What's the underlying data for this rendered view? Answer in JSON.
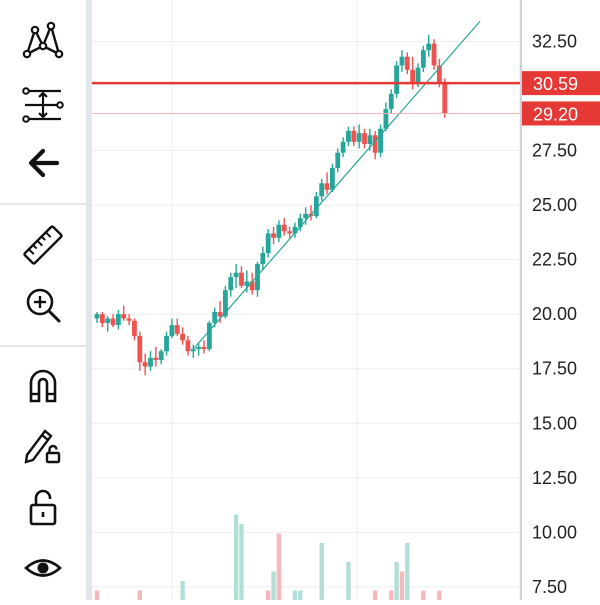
{
  "toolbar": {
    "tools": [
      {
        "name": "pattern-tool",
        "icon": "xabcd-pattern-icon"
      },
      {
        "name": "fib-retracement-tool",
        "icon": "fib-levels-icon"
      },
      {
        "name": "back-tool",
        "icon": "arrow-left-icon"
      },
      {
        "name": "measure-tool",
        "icon": "ruler-icon"
      },
      {
        "name": "zoom-in-tool",
        "icon": "zoom-in-icon"
      },
      {
        "name": "magnet-tool",
        "icon": "magnet-icon"
      },
      {
        "name": "lock-drawings-tool",
        "icon": "pencil-lock-icon"
      },
      {
        "name": "lock-all-tool",
        "icon": "unlock-icon"
      },
      {
        "name": "visibility-tool",
        "icon": "eye-icon"
      }
    ]
  },
  "colors": {
    "up": "#26a69a",
    "down": "#ef5350",
    "up_volume": "#b2dfd5",
    "down_volume": "#f5b8bc",
    "price_line": "#e53935",
    "trend_line": "#26a69a",
    "grid": "#eceef2"
  },
  "price_axis": {
    "ticks": [
      "32.50",
      "27.50",
      "25.00",
      "22.50",
      "20.00",
      "17.50",
      "15.00",
      "12.50",
      "10.00",
      "7.50"
    ]
  },
  "price_tags": {
    "current": {
      "label": "30.59",
      "value": 30.59
    },
    "last": {
      "label": "29.20",
      "value": 29.2
    }
  },
  "chart_data": {
    "type": "candlestick",
    "y_range": [
      6.9,
      34.4
    ],
    "trend_line": {
      "start": {
        "bar": 18,
        "price": 18.4
      },
      "end": {
        "bar": 66,
        "price": 32.6
      }
    },
    "candles": [
      [
        19.8,
        20.1,
        19.6,
        20.0
      ],
      [
        20.0,
        20.1,
        19.4,
        19.6
      ],
      [
        19.6,
        19.9,
        19.2,
        19.8
      ],
      [
        19.8,
        20.0,
        19.4,
        19.5
      ],
      [
        19.5,
        20.2,
        19.3,
        20.0
      ],
      [
        20.0,
        20.4,
        19.7,
        19.8
      ],
      [
        19.8,
        20.0,
        19.5,
        19.7
      ],
      [
        19.7,
        19.8,
        18.8,
        19.0
      ],
      [
        19.0,
        19.2,
        17.4,
        17.8
      ],
      [
        17.8,
        18.2,
        17.2,
        17.6
      ],
      [
        17.6,
        18.3,
        17.4,
        18.0
      ],
      [
        18.0,
        18.5,
        17.6,
        17.9
      ],
      [
        17.9,
        18.4,
        17.7,
        18.3
      ],
      [
        18.3,
        19.2,
        18.1,
        19.0
      ],
      [
        19.0,
        19.8,
        18.9,
        19.5
      ],
      [
        19.5,
        19.8,
        19.0,
        19.1
      ],
      [
        19.1,
        19.4,
        18.6,
        18.8
      ],
      [
        18.8,
        19.0,
        18.1,
        18.3
      ],
      [
        18.3,
        18.6,
        18.0,
        18.4
      ],
      [
        18.4,
        18.7,
        18.1,
        18.5
      ],
      [
        18.5,
        18.8,
        18.2,
        18.4
      ],
      [
        18.4,
        19.7,
        18.3,
        19.6
      ],
      [
        19.6,
        20.3,
        19.4,
        20.1
      ],
      [
        20.1,
        20.6,
        19.6,
        19.9
      ],
      [
        19.9,
        21.3,
        19.8,
        21.1
      ],
      [
        21.1,
        21.9,
        20.8,
        21.7
      ],
      [
        21.7,
        22.3,
        21.2,
        21.9
      ],
      [
        21.9,
        22.2,
        21.2,
        21.3
      ],
      [
        21.3,
        22.0,
        21.0,
        21.5
      ],
      [
        21.5,
        21.9,
        20.9,
        21.1
      ],
      [
        21.1,
        22.4,
        20.8,
        22.3
      ],
      [
        22.3,
        23.1,
        22.0,
        22.8
      ],
      [
        22.8,
        23.9,
        22.6,
        23.7
      ],
      [
        23.7,
        24.0,
        23.2,
        23.5
      ],
      [
        23.5,
        24.3,
        23.3,
        24.1
      ],
      [
        24.1,
        24.4,
        23.6,
        23.8
      ],
      [
        23.8,
        24.0,
        23.5,
        23.7
      ],
      [
        23.7,
        24.2,
        23.5,
        24.0
      ],
      [
        24.0,
        24.6,
        23.8,
        24.4
      ],
      [
        24.4,
        24.9,
        24.1,
        24.6
      ],
      [
        24.6,
        25.0,
        24.3,
        24.5
      ],
      [
        24.5,
        25.6,
        24.4,
        25.4
      ],
      [
        25.4,
        26.2,
        25.2,
        26.0
      ],
      [
        26.0,
        26.5,
        25.5,
        25.7
      ],
      [
        25.7,
        26.9,
        25.6,
        26.7
      ],
      [
        26.7,
        27.6,
        26.5,
        27.4
      ],
      [
        27.4,
        28.1,
        27.2,
        27.9
      ],
      [
        27.9,
        28.6,
        27.7,
        28.4
      ],
      [
        28.4,
        28.6,
        27.7,
        27.9
      ],
      [
        27.9,
        28.7,
        27.6,
        28.3
      ],
      [
        28.3,
        28.5,
        27.6,
        27.8
      ],
      [
        27.8,
        28.5,
        27.5,
        28.2
      ],
      [
        28.2,
        28.4,
        27.1,
        27.4
      ],
      [
        27.4,
        28.7,
        27.2,
        28.5
      ],
      [
        28.5,
        29.7,
        28.4,
        29.4
      ],
      [
        29.4,
        30.3,
        29.2,
        30.1
      ],
      [
        30.1,
        31.6,
        29.9,
        31.4
      ],
      [
        31.4,
        32.1,
        31.1,
        31.8
      ],
      [
        31.8,
        32.0,
        31.0,
        31.2
      ],
      [
        31.2,
        31.8,
        30.3,
        30.6
      ],
      [
        30.6,
        31.5,
        30.4,
        31.3
      ],
      [
        31.3,
        32.3,
        31.1,
        32.1
      ],
      [
        32.1,
        32.8,
        31.8,
        32.4
      ],
      [
        32.4,
        32.6,
        31.2,
        31.4
      ],
      [
        31.4,
        31.7,
        30.4,
        30.6
      ],
      [
        30.6,
        30.8,
        29.0,
        29.2
      ]
    ],
    "volume": [
      1,
      0,
      0,
      0,
      0,
      0,
      0,
      0,
      1,
      0,
      0,
      0,
      0,
      0,
      0,
      0,
      2,
      0,
      0,
      0,
      0,
      0,
      0,
      0,
      0,
      0,
      9,
      8,
      0,
      0,
      0,
      0,
      1,
      3,
      7,
      0,
      0,
      1,
      1,
      0,
      0,
      0,
      6,
      0,
      0,
      0,
      0,
      4,
      0,
      0,
      0,
      0,
      1,
      0,
      0,
      1,
      4,
      3,
      6,
      0,
      0,
      1,
      0,
      0,
      1,
      0
    ],
    "volume_up": [
      0,
      0,
      0,
      0,
      0,
      0,
      0,
      0,
      0,
      0,
      0,
      0,
      0,
      0,
      0,
      0,
      1,
      0,
      0,
      0,
      0,
      0,
      0,
      0,
      0,
      0,
      1,
      1,
      0,
      0,
      0,
      0,
      0,
      1,
      0,
      0,
      0,
      1,
      1,
      0,
      0,
      0,
      1,
      0,
      0,
      0,
      0,
      1,
      0,
      0,
      0,
      0,
      0,
      0,
      0,
      0,
      1,
      0,
      1,
      0,
      0,
      0,
      0,
      0,
      0,
      0
    ]
  }
}
